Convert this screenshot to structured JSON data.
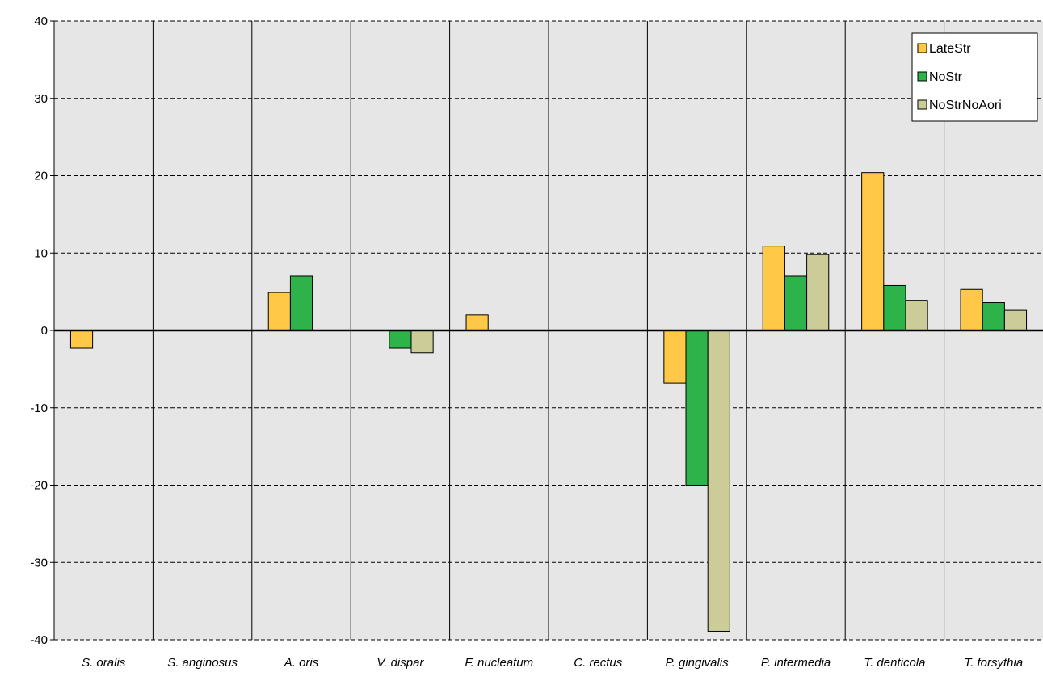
{
  "chart_data": {
    "type": "bar",
    "categories": [
      "S. oralis",
      "S. anginosus",
      "A. oris",
      "V. dispar",
      "F. nucleatum",
      "C. rectus",
      "P. gingivalis",
      "P. intermedia",
      "T. denticola",
      "T. forsythia"
    ],
    "series": [
      {
        "name": "LateStr",
        "color": "#FFC846",
        "values": [
          -2.3,
          0,
          4.9,
          0,
          2.0,
          0,
          -6.8,
          10.9,
          20.4,
          5.3
        ]
      },
      {
        "name": "NoStr",
        "color": "#2DB34A",
        "values": [
          0,
          0,
          7.0,
          -2.3,
          0,
          0,
          -20.0,
          7.0,
          5.8,
          3.6
        ]
      },
      {
        "name": "NoStrNoAori",
        "color": "#CCCC99",
        "values": [
          0,
          0,
          0,
          -2.9,
          0,
          0,
          -38.9,
          9.8,
          3.9,
          2.6
        ]
      }
    ],
    "yticks": [
      40,
      30,
      20,
      10,
      0,
      -10,
      -20,
      -30,
      -40
    ],
    "ylim": [
      -40,
      40
    ],
    "grid": true,
    "legend_position": "top-right",
    "plot_background": "#E6E6E6"
  }
}
